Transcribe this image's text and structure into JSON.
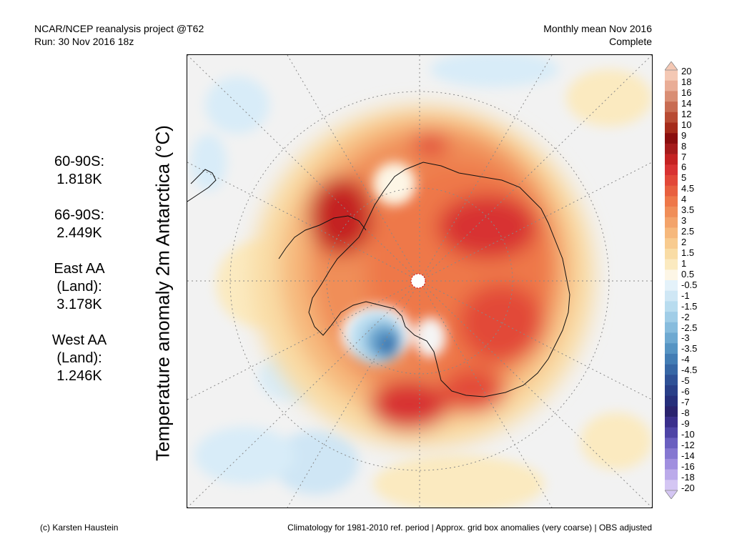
{
  "header": {
    "left_line1": "NCAR/NCEP reanalysis project @T62",
    "left_line2": "Run: 30 Nov 2016 18z",
    "right_line1": "Monthly mean Nov 2016",
    "right_line2": "Complete"
  },
  "y_axis_label": "Temperature anomaly 2m Antarctica (°C)",
  "stats": [
    {
      "region": "60-90S:",
      "value": "1.818K"
    },
    {
      "region": "66-90S:",
      "value": "2.449K"
    },
    {
      "region": "East AA (Land):",
      "value": "3.178K"
    },
    {
      "region": "West AA (Land):",
      "value": "1.246K"
    }
  ],
  "colorbar": {
    "labels": [
      "20",
      "18",
      "16",
      "14",
      "12",
      "10",
      "9",
      "8",
      "7",
      "6",
      "5",
      "4.5",
      "4",
      "3.5",
      "3",
      "2.5",
      "2",
      "1.5",
      "1",
      "0.5",
      "-0.5",
      "-1",
      "-1.5",
      "-2",
      "-2.5",
      "-3",
      "-3.5",
      "-4",
      "-4.5",
      "-5",
      "-6",
      "-7",
      "-8",
      "-9",
      "-10",
      "-12",
      "-14",
      "-16",
      "-18",
      "-20"
    ],
    "colors": [
      "#f4c8b4",
      "#e9ad96",
      "#d98e74",
      "#c86c52",
      "#b84b33",
      "#a52b1a",
      "#8a0e0e",
      "#a51b1b",
      "#c42222",
      "#d83232",
      "#e24838",
      "#e8603f",
      "#ee7849",
      "#f08e58",
      "#f3a36a",
      "#f6b87c",
      "#f8cb8f",
      "#f9dca5",
      "#fbeac0",
      "#fdf6e6",
      "#e4f2fa",
      "#cfe7f5",
      "#b8dcef",
      "#a0cde7",
      "#87bcdd",
      "#6ea9d1",
      "#5694c3",
      "#437db4",
      "#3767a5",
      "#2f5196",
      "#293f88",
      "#262f7b",
      "#2a236e",
      "#3a2f8c",
      "#4e44a6",
      "#6a5fc0",
      "#8577d1",
      "#a08fdf",
      "#bbaaea",
      "#d4c6f3"
    ]
  },
  "footer": {
    "left": "(c) Karsten Haustein",
    "right": "Climatology for 1981-2010 ref. period | Approx. grid box anomalies (very coarse) | OBS adjusted"
  }
}
